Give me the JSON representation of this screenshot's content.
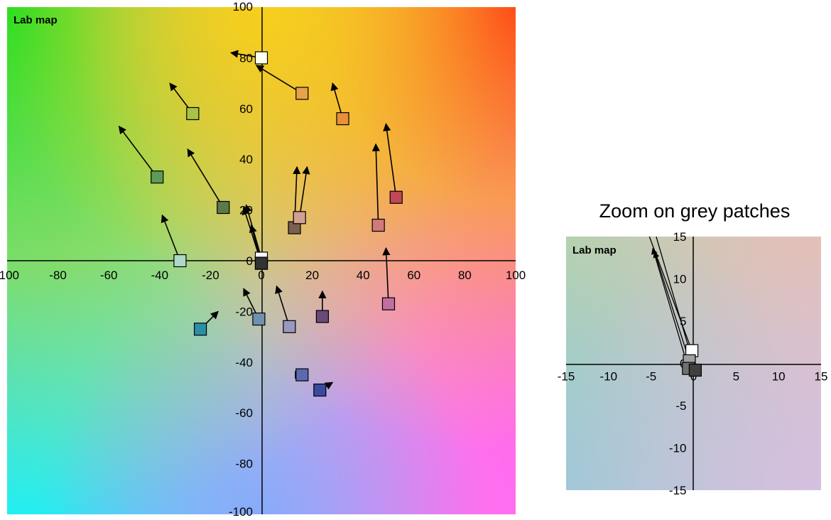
{
  "chart_data": [
    {
      "type": "scatter",
      "title": "",
      "plot_label": "Lab map",
      "xlim": [
        -100,
        100
      ],
      "ylim": [
        -100,
        100
      ],
      "xticks": [
        "-100",
        "-80",
        "-60",
        "-40",
        "-20",
        "0",
        "20",
        "40",
        "60",
        "80",
        "100"
      ],
      "yticks": [
        "100",
        "80",
        "60",
        "40",
        "20",
        "0",
        "-20",
        "-40",
        "-60",
        "-80",
        "-100"
      ],
      "background": "Lab colour space gradient",
      "points": [
        {
          "color": "#ffffee",
          "a": 0,
          "b": 80,
          "arrow_to": [
            -12,
            82
          ]
        },
        {
          "color": "#e8a24a",
          "a": 16,
          "b": 66,
          "arrow_to": -2,
          "arrow_to_b": 77
        },
        {
          "color": "#e88e3c",
          "a": 32,
          "b": 56,
          "arrow_to": [
            28,
            70
          ]
        },
        {
          "color": "#a8c444",
          "a": -27,
          "b": 58,
          "arrow_to": [
            -36,
            70
          ]
        },
        {
          "color": "#5e9a58",
          "a": -41,
          "b": 33,
          "arrow_to": [
            -56,
            53
          ]
        },
        {
          "color": "#5c7a48",
          "a": -15,
          "b": 21,
          "arrow_to": [
            -29,
            44
          ]
        },
        {
          "color": "#b0d8c8",
          "a": -32,
          "b": 0,
          "arrow_to": [
            -39,
            18
          ]
        },
        {
          "color": "#7a6050",
          "a": 13,
          "b": 13,
          "arrow_to": [
            14,
            37
          ]
        },
        {
          "color": "#d0a090",
          "a": 15,
          "b": 17,
          "arrow_to": [
            18,
            37
          ]
        },
        {
          "color": "#d07a7a",
          "a": 46,
          "b": 14,
          "arrow_to": [
            45,
            46
          ]
        },
        {
          "color": "#c04858",
          "a": 53,
          "b": 25,
          "arrow_to": [
            49,
            54
          ]
        },
        {
          "color": "#c070a0",
          "a": 50,
          "b": -17,
          "arrow_to": [
            49,
            5
          ]
        },
        {
          "color": "#7090b0",
          "a": -1,
          "b": -23,
          "arrow_to": [
            -7,
            -11
          ]
        },
        {
          "color": "#9898c0",
          "a": 11,
          "b": -26,
          "arrow_to": [
            6,
            -10
          ]
        },
        {
          "color": "#6a4a78",
          "a": 24,
          "b": -22,
          "arrow_to": [
            24,
            -12
          ]
        },
        {
          "color": "#2a90a8",
          "a": -24,
          "b": -27,
          "arrow_to": [
            -17,
            -20
          ]
        },
        {
          "color": "#5a6ab0",
          "a": 16,
          "b": -45,
          "arrow_to": [
            16,
            -45
          ]
        },
        {
          "color": "#3a4aa0",
          "a": 23,
          "b": -51,
          "arrow_to": [
            28,
            -48
          ]
        },
        {
          "color": "#ffffff",
          "a": 0,
          "b": 1,
          "arrow_to": [
            -6,
            22
          ]
        },
        {
          "color": "#606060",
          "a": 0,
          "b": -1,
          "arrow_to": [
            -4,
            14
          ]
        },
        {
          "color": "#333333",
          "a": 0,
          "b": -1,
          "arrow_to": [
            -7,
            21
          ]
        }
      ]
    },
    {
      "type": "scatter",
      "title": "Zoom on grey patches",
      "plot_label": "Lab map",
      "xlim": [
        -15,
        15
      ],
      "ylim": [
        -15,
        15
      ],
      "xticks": [
        "-15",
        "-10",
        "-5",
        "0",
        "5",
        "10",
        "15"
      ],
      "yticks": [
        "15",
        "10",
        "5",
        "0",
        "-5",
        "-10",
        "-15"
      ],
      "points": [
        {
          "color": "#ffffff",
          "a": -0.2,
          "b": 1.5
        },
        {
          "color": "#a0a0a0",
          "a": -0.5,
          "b": 0.3
        },
        {
          "color": "#707070",
          "a": -0.6,
          "b": -0.6
        },
        {
          "color": "#404040",
          "a": 0.2,
          "b": -0.8
        }
      ],
      "arrows": [
        {
          "from": [
            -0.2,
            1.5
          ],
          "to": [
            -5.2,
            15
          ]
        },
        {
          "from": [
            -0.5,
            0.3
          ],
          "to": [
            -4.6,
            13.2
          ]
        },
        {
          "from": [
            -0.6,
            -0.6
          ],
          "to": [
            -4.8,
            13.6
          ]
        },
        {
          "from": [
            0.2,
            -0.8
          ],
          "to": [
            -4.4,
            15
          ]
        }
      ]
    }
  ]
}
